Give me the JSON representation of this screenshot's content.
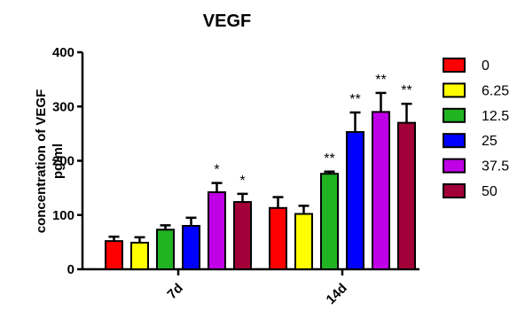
{
  "chart_data": {
    "type": "bar",
    "title": "VEGF",
    "xlabel": "",
    "ylabel": [
      "concentration of VEGF",
      "pg/ml"
    ],
    "ylim": [
      0,
      400
    ],
    "yticks": [
      0,
      100,
      200,
      300,
      400
    ],
    "categories": [
      "7d",
      "14d"
    ],
    "series": [
      {
        "name": "0",
        "color": "#ff0000",
        "values": [
          52,
          113
        ],
        "errors": [
          8,
          20
        ]
      },
      {
        "name": "6.25",
        "color": "#ffff00",
        "values": [
          49,
          102
        ],
        "errors": [
          10,
          15
        ]
      },
      {
        "name": "12.5",
        "color": "#22b322",
        "values": [
          73,
          176
        ],
        "errors": [
          8,
          4
        ]
      },
      {
        "name": "25",
        "color": "#0000ff",
        "values": [
          80,
          253
        ],
        "errors": [
          15,
          36
        ]
      },
      {
        "name": "37.5",
        "color": "#bf00e6",
        "values": [
          142,
          290
        ],
        "errors": [
          17,
          35
        ]
      },
      {
        "name": "50",
        "color": "#a3003a",
        "values": [
          124,
          270
        ],
        "errors": [
          15,
          35
        ]
      }
    ],
    "significance": [
      [
        "",
        "",
        "",
        "",
        "*",
        "*"
      ],
      [
        "",
        "",
        "**",
        "**",
        "**",
        "**"
      ]
    ],
    "legend_position": "right",
    "grid": false
  }
}
